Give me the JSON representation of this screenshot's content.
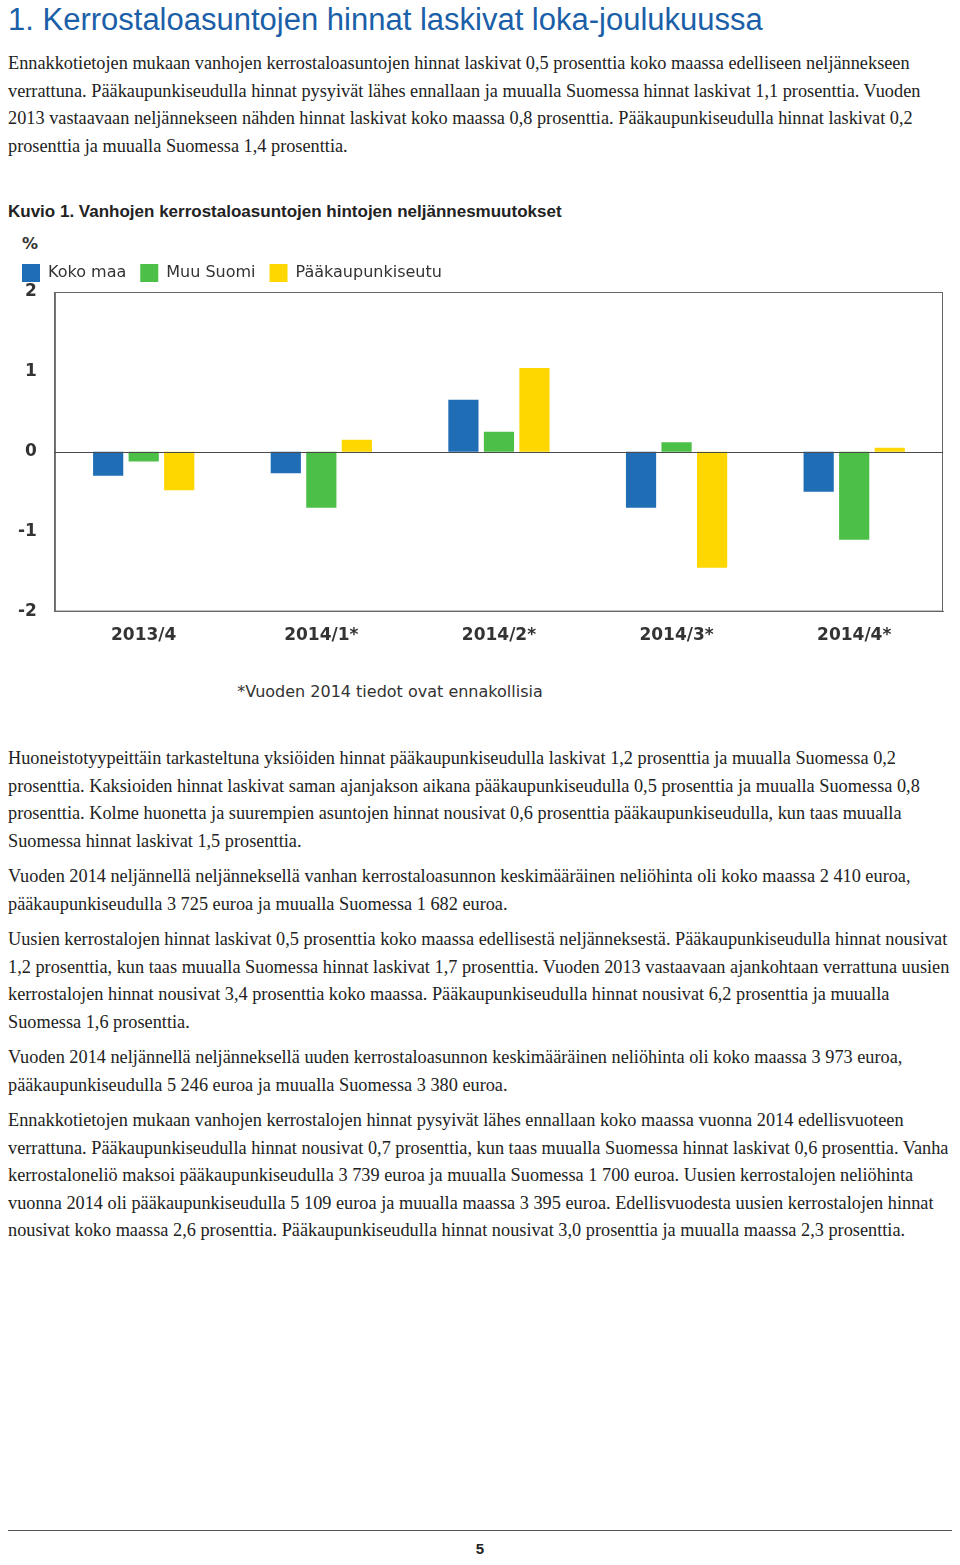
{
  "heading": "1. Kerrostaloasuntojen hinnat laskivat loka-joulukuussa",
  "intro": [
    "Ennakkotietojen mukaan vanhojen kerrostaloasuntojen hinnat laskivat 0,5 prosenttia koko maassa edelliseen neljännekseen verrattuna. Pääkaupunkiseudulla hinnat pysyivät lähes ennallaan ja muualla Suomessa hinnat laskivat 1,1 prosenttia. Vuoden 2013 vastaavaan neljännekseen nähden hinnat laskivat koko maassa 0,8 prosenttia. Pääkaupunkiseudulla hinnat laskivat 0,2 prosenttia ja muualla Suomessa 1,4 prosenttia."
  ],
  "figure_caption": "Kuvio 1. Vanhojen kerrostaloasuntojen hintojen neljännesmuutokset",
  "chart_data": {
    "type": "bar",
    "y_label": "%",
    "categories": [
      "2013/4",
      "2014/1*",
      "2014/2*",
      "2014/3*",
      "2014/4*"
    ],
    "series": [
      {
        "name": "Koko maa",
        "color": "#1f6db5",
        "values": [
          -0.3,
          -0.27,
          0.65,
          -0.7,
          -0.5
        ]
      },
      {
        "name": "Muu Suomi",
        "color": "#4cbf47",
        "values": [
          -0.12,
          -0.7,
          0.25,
          0.12,
          -1.1
        ]
      },
      {
        "name": "Pääkaupunkiseutu",
        "color": "#ffd700",
        "values": [
          -0.48,
          0.15,
          1.05,
          -1.45,
          0.05
        ]
      }
    ],
    "ylim": [
      -2,
      2
    ],
    "yticks": [
      -2,
      -1,
      0,
      1,
      2
    ],
    "grid": false,
    "legend": "top-left"
  },
  "footnote": "*Vuoden 2014 tiedot ovat ennakollisia",
  "body": [
    "Huoneistotyypeittäin tarkasteltuna yksiöiden hinnat pääkaupunkiseudulla laskivat 1,2 prosenttia ja muualla Suomessa 0,2 prosenttia. Kaksioiden hinnat laskivat saman ajanjakson aikana pääkaupunkiseudulla 0,5 prosenttia ja muualla Suomessa 0,8 prosenttia. Kolme huonetta ja suurempien asuntojen hinnat nousivat 0,6 prosenttia pääkaupunkiseudulla, kun taas muualla Suomessa hinnat laskivat 1,5 prosenttia.",
    "Vuoden 2014 neljännellä neljänneksellä vanhan kerrostaloasunnon keskimääräinen neliöhinta oli koko maassa 2 410 euroa, pääkaupunkiseudulla 3 725 euroa ja muualla Suomessa 1 682 euroa.",
    "Uusien kerrostalojen hinnat laskivat 0,5 prosenttia koko maassa edellisestä neljänneksestä. Pääkaupunkiseudulla hinnat nousivat 1,2 prosenttia, kun taas muualla Suomessa hinnat laskivat 1,7 prosenttia. Vuoden 2013 vastaavaan ajankohtaan verrattuna uusien kerrostalojen hinnat nousivat 3,4 prosenttia koko maassa. Pääkaupunkiseudulla hinnat nousivat 6,2 prosenttia ja muualla Suomessa 1,6 prosenttia.",
    "Vuoden 2014 neljännellä neljänneksellä uuden kerrostaloasunnon keskimääräinen neliöhinta oli koko maassa 3 973 euroa, pääkaupunkiseudulla 5 246 euroa ja muualla Suomessa 3 380 euroa.",
    "Ennakkotietojen mukaan vanhojen kerrostalojen hinnat pysyivät lähes ennallaan koko maassa vuonna 2014 edellisvuoteen verrattuna. Pääkaupunkiseudulla hinnat nousivat 0,7 prosenttia, kun taas muualla Suomessa hinnat laskivat 0,6 prosenttia. Vanha kerrostaloneliö maksoi pääkaupunkiseudulla 3 739 euroa ja muualla Suomessa 1 700 euroa. Uusien kerrostalojen neliöhinta vuonna 2014 oli pääkaupunkiseudulla 5 109 euroa ja muualla maassa 3 395 euroa. Edellisvuodesta uusien kerrostalojen hinnat nousivat koko maassa 2,6 prosenttia. Pääkaupunkiseudulla hinnat nousivat 3,0 prosenttia ja muualla maassa 2,3 prosenttia."
  ],
  "page_number": "5"
}
